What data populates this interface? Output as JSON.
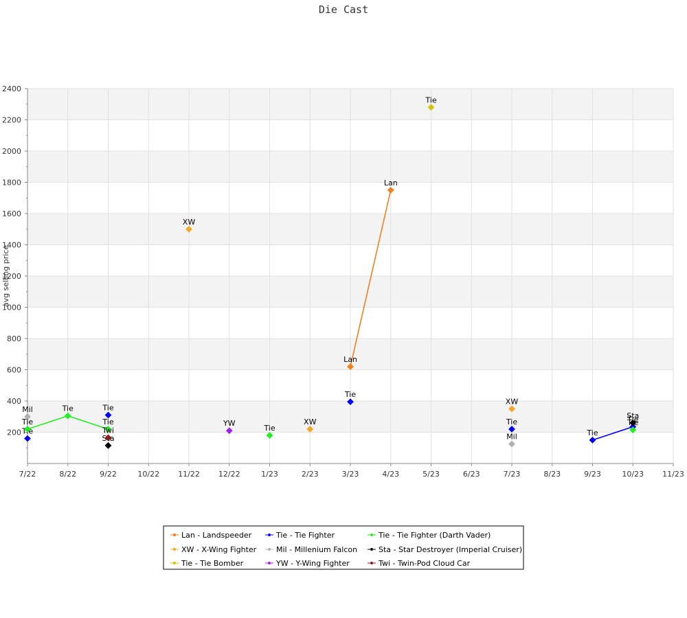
{
  "chart_data": {
    "type": "line",
    "title": "Die Cast",
    "xlabel": "",
    "ylabel": "avg selling price",
    "ylim": [
      0,
      2400
    ],
    "yticks": [
      200,
      400,
      600,
      800,
      1000,
      1200,
      1400,
      1600,
      1800,
      2000,
      2200,
      2400
    ],
    "categories": [
      "7/22",
      "8/22",
      "9/22",
      "10/22",
      "11/22",
      "12/22",
      "1/23",
      "2/23",
      "3/23",
      "4/23",
      "5/23",
      "6/23",
      "7/23",
      "8/23",
      "9/23",
      "10/23",
      "11/23"
    ],
    "grid": true,
    "legend_position": "bottom",
    "series": [
      {
        "name": "Lan - Landspeeder",
        "label": "Lan",
        "color": "#f07f1e",
        "points": [
          {
            "x": "3/23",
            "y": 620
          },
          {
            "x": "4/23",
            "y": 1750
          }
        ]
      },
      {
        "name": "XW - X-Wing Fighter",
        "label": "XW",
        "color": "#f5a623",
        "points": [
          {
            "x": "11/22",
            "y": 1500
          },
          {
            "x": "2/23",
            "y": 220
          },
          {
            "x": "7/23",
            "y": 350
          }
        ]
      },
      {
        "name": "Tie - Tie Bomber",
        "label": "Tie",
        "color": "#d4c500",
        "points": [
          {
            "x": "5/23",
            "y": 2280
          }
        ]
      },
      {
        "name": "Tie - Tie Fighter",
        "label": "Tie",
        "color": "#0000ff",
        "points": [
          {
            "x": "7/22",
            "y": 160
          },
          {
            "x": "9/22",
            "y": 310
          },
          {
            "x": "3/23",
            "y": 395
          },
          {
            "x": "7/23",
            "y": 220
          },
          {
            "x": "9/23",
            "y": 150
          },
          {
            "x": "10/23",
            "y": 235
          }
        ]
      },
      {
        "name": "Mil - Millenium Falcon",
        "label": "Mil",
        "color": "#b0b0b0",
        "points": [
          {
            "x": "7/22",
            "y": 300
          },
          {
            "x": "7/23",
            "y": 125
          }
        ]
      },
      {
        "name": "YW - Y-Wing Fighter",
        "label": "YW",
        "color": "#a020f0",
        "points": [
          {
            "x": "12/22",
            "y": 210
          }
        ]
      },
      {
        "name": "Tie - Tie Fighter (Darth Vader)",
        "label": "Tie",
        "color": "#22ee22",
        "points": [
          {
            "x": "7/22",
            "y": 220
          },
          {
            "x": "8/22",
            "y": 305
          },
          {
            "x": "9/22",
            "y": 220
          },
          {
            "x": "1/23",
            "y": 180
          },
          {
            "x": "10/23",
            "y": 215
          }
        ]
      },
      {
        "name": "Sta - Star Destroyer (Imperial Cruiser)",
        "label": "Sta",
        "color": "#000000",
        "points": [
          {
            "x": "9/22",
            "y": 115
          },
          {
            "x": "10/23",
            "y": 260
          }
        ]
      },
      {
        "name": "Twi - Twin-Pod Cloud Car",
        "label": "Twi",
        "color": "#8b1a1a",
        "points": [
          {
            "x": "9/22",
            "y": 165
          }
        ]
      }
    ]
  }
}
